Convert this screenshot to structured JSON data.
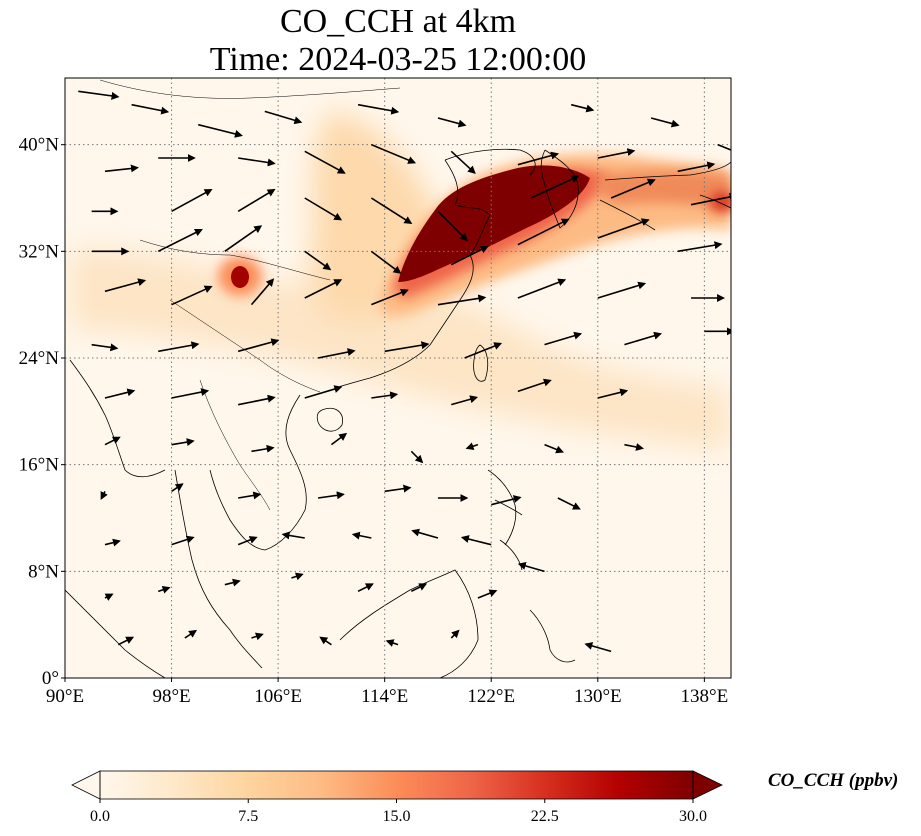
{
  "title": {
    "line1": "CO_CCH at 4km",
    "line2": "Time: 2024-03-25 12:00:00"
  },
  "map": {
    "lon_range": [
      90,
      140
    ],
    "lat_range": [
      0,
      45
    ],
    "grid": true,
    "grid_style": "dotted",
    "x_ticks": [
      {
        "value": 90,
        "label": "90°E"
      },
      {
        "value": 98,
        "label": "98°E"
      },
      {
        "value": 106,
        "label": "106°E"
      },
      {
        "value": 114,
        "label": "114°E"
      },
      {
        "value": 122,
        "label": "122°E"
      },
      {
        "value": 130,
        "label": "130°E"
      },
      {
        "value": 138,
        "label": "138°E"
      }
    ],
    "y_ticks": [
      {
        "value": 0,
        "label": "0°"
      },
      {
        "value": 8,
        "label": "8°N"
      },
      {
        "value": 16,
        "label": "16°N"
      },
      {
        "value": 24,
        "label": "24°N"
      },
      {
        "value": 32,
        "label": "32°N"
      },
      {
        "value": 40,
        "label": "40°N"
      }
    ]
  },
  "colorbar": {
    "title": "CO_CCH (ppbv)",
    "colormap": "OrRd",
    "min": 0.0,
    "max": 30.0,
    "extend": "both",
    "ticks": [
      "0.0",
      "7.5",
      "15.0",
      "22.5",
      "30.0"
    ],
    "colors": [
      "#fff7ec",
      "#fee8c8",
      "#fdd49e",
      "#fdbb84",
      "#fc8d59",
      "#ef6548",
      "#d7301f",
      "#b30000",
      "#7f0000"
    ]
  },
  "plumes": [
    {
      "name": "east-china-band",
      "lon_center": 123,
      "lat_center": 34.5,
      "value": 30
    },
    {
      "name": "yellow-sea-core",
      "lon_center": 119,
      "lat_center": 33,
      "value": 30
    },
    {
      "name": "sichuan-spot",
      "lon_center": 102.5,
      "lat_center": 30,
      "value": 28
    },
    {
      "name": "korea-japan-tail",
      "lon_center": 135,
      "lat_center": 36.5,
      "value": 15
    },
    {
      "name": "south-china-sheet",
      "lon_center": 112,
      "lat_center": 26,
      "value": 4
    }
  ],
  "wind_vectors": [
    [
      91,
      44,
      2.2,
      -0.3
    ],
    [
      95,
      43,
      2.0,
      -0.4
    ],
    [
      100,
      41.5,
      2.4,
      -0.6
    ],
    [
      105,
      42.5,
      2.0,
      -0.6
    ],
    [
      112,
      43,
      2.2,
      -0.4
    ],
    [
      118,
      42,
      1.5,
      -0.4
    ],
    [
      128,
      43,
      1.2,
      -0.3
    ],
    [
      134,
      42,
      1.5,
      -0.4
    ],
    [
      139,
      40,
      1.5,
      -0.6
    ],
    [
      93,
      38,
      1.8,
      0.2
    ],
    [
      97,
      39,
      2.0,
      0.0
    ],
    [
      103,
      39,
      2.0,
      -0.3
    ],
    [
      108,
      39.5,
      2.2,
      -1.2
    ],
    [
      113,
      40,
      2.4,
      -1.0
    ],
    [
      119,
      39.5,
      1.3,
      -1.2
    ],
    [
      124,
      38.5,
      2.2,
      0.6
    ],
    [
      130,
      39,
      2.0,
      0.4
    ],
    [
      136,
      38,
      2.0,
      0.4
    ],
    [
      92,
      35,
      1.4,
      0.0
    ],
    [
      98,
      35,
      2.2,
      1.2
    ],
    [
      103,
      35,
      2.0,
      1.2
    ],
    [
      108,
      36,
      2.0,
      -1.2
    ],
    [
      113,
      36,
      2.2,
      -1.4
    ],
    [
      118,
      35,
      1.6,
      -1.6
    ],
    [
      125,
      36,
      2.6,
      1.2
    ],
    [
      131,
      36,
      2.4,
      1.0
    ],
    [
      137,
      35.5,
      2.5,
      0.5
    ],
    [
      92,
      32,
      2.0,
      0.0
    ],
    [
      97,
      32,
      2.4,
      1.2
    ],
    [
      102,
      32,
      2.0,
      1.4
    ],
    [
      108,
      32,
      1.4,
      -1.0
    ],
    [
      113,
      32,
      1.6,
      -1.2
    ],
    [
      119,
      31,
      2.0,
      1.0
    ],
    [
      124,
      32.5,
      2.8,
      1.4
    ],
    [
      130,
      33,
      2.8,
      1.0
    ],
    [
      136,
      32,
      2.4,
      0.4
    ],
    [
      93,
      29,
      2.2,
      0.6
    ],
    [
      98,
      28,
      2.2,
      1.0
    ],
    [
      104,
      28,
      1.2,
      1.4
    ],
    [
      108,
      28.5,
      2.0,
      1.0
    ],
    [
      113,
      28,
      2.0,
      0.8
    ],
    [
      118,
      28,
      2.6,
      0.4
    ],
    [
      124,
      28.5,
      2.6,
      1.0
    ],
    [
      130,
      28.5,
      2.6,
      0.8
    ],
    [
      137,
      28.5,
      1.8,
      0.0
    ],
    [
      92,
      25,
      1.4,
      -0.2
    ],
    [
      97,
      24.5,
      2.2,
      0.4
    ],
    [
      103,
      24.5,
      2.2,
      0.6
    ],
    [
      109,
      24,
      2.0,
      0.4
    ],
    [
      114,
      24.5,
      2.4,
      0.4
    ],
    [
      120,
      24,
      2.0,
      0.8
    ],
    [
      126,
      25,
      2.0,
      0.6
    ],
    [
      132,
      25,
      2.0,
      0.6
    ],
    [
      138,
      26,
      1.6,
      0.0
    ],
    [
      93,
      21,
      1.6,
      0.4
    ],
    [
      98,
      21,
      2.0,
      0.4
    ],
    [
      103,
      20.5,
      2.0,
      0.4
    ],
    [
      108,
      21,
      2.0,
      0.6
    ],
    [
      113,
      21,
      1.4,
      0.2
    ],
    [
      119,
      20.5,
      1.4,
      0.4
    ],
    [
      124,
      21.5,
      1.8,
      0.6
    ],
    [
      130,
      21,
      1.6,
      0.4
    ],
    [
      93,
      17.5,
      0.8,
      0.4
    ],
    [
      98,
      17.5,
      1.2,
      0.2
    ],
    [
      104,
      17,
      1.2,
      0.2
    ],
    [
      110,
      17.5,
      0.8,
      0.6
    ],
    [
      116,
      17,
      0.6,
      -0.6
    ],
    [
      121,
      17.5,
      -0.6,
      -0.2
    ],
    [
      126,
      17.5,
      1.0,
      -0.4
    ],
    [
      132,
      17.5,
      1.0,
      -0.2
    ],
    [
      93,
      14,
      -0.2,
      -0.4
    ],
    [
      98,
      14,
      0.6,
      0.4
    ],
    [
      103,
      13.5,
      1.2,
      0.2
    ],
    [
      109,
      13.5,
      1.4,
      0.2
    ],
    [
      114,
      14,
      1.4,
      0.2
    ],
    [
      118,
      13.5,
      1.6,
      0.0
    ],
    [
      122,
      13,
      1.6,
      0.4
    ],
    [
      127,
      13.5,
      1.2,
      -0.6
    ],
    [
      93,
      10,
      0.8,
      0.2
    ],
    [
      98,
      10,
      1.2,
      0.4
    ],
    [
      103,
      10,
      1.0,
      0.4
    ],
    [
      108,
      10.5,
      -1.2,
      0.2
    ],
    [
      113,
      10.5,
      -1.0,
      0.2
    ],
    [
      118,
      10.5,
      -1.4,
      0.4
    ],
    [
      122,
      10,
      -1.6,
      0.4
    ],
    [
      126,
      8,
      -1.4,
      0.4
    ],
    [
      93,
      6,
      0.4,
      0.2
    ],
    [
      97,
      6.5,
      0.6,
      0.2
    ],
    [
      102,
      7,
      0.8,
      0.2
    ],
    [
      107,
      7.5,
      0.6,
      0.2
    ],
    [
      112,
      6.5,
      0.8,
      0.4
    ],
    [
      116,
      6.5,
      0.8,
      0.4
    ],
    [
      121,
      6,
      1.0,
      0.4
    ],
    [
      94,
      2.5,
      0.8,
      0.4
    ],
    [
      99,
      3,
      0.6,
      0.4
    ],
    [
      104,
      3,
      0.6,
      0.2
    ],
    [
      110,
      2.5,
      -0.6,
      0.4
    ],
    [
      115,
      2.5,
      -0.6,
      0.2
    ],
    [
      119,
      3,
      0.4,
      0.4
    ],
    [
      131,
      2,
      -1.4,
      0.4
    ]
  ]
}
